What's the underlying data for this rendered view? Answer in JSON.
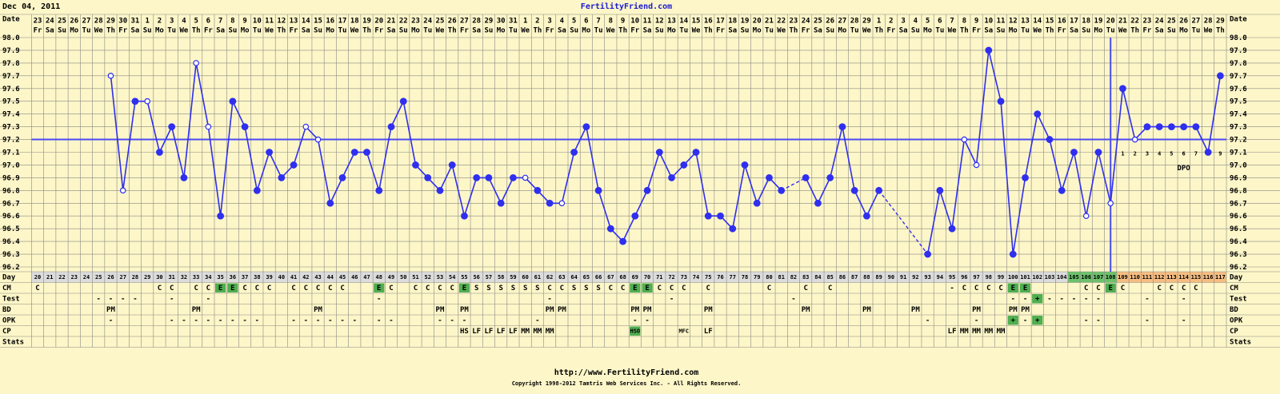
{
  "header": {
    "date": "Dec 04, 2011",
    "site": "FertilityFriend.com"
  },
  "footer": {
    "url": "http://www.FertilityFriend.com",
    "copyright": "Copyright 1998-2012 Tamtris Web Services Inc. - All Rights Reserved."
  },
  "chart_data": {
    "type": "line",
    "date_label": "Date",
    "day_label": "Day",
    "dpo_label": "DPO",
    "days": [
      20,
      21,
      22,
      23,
      24,
      25,
      26,
      27,
      28,
      29,
      30,
      31,
      32,
      33,
      34,
      35,
      36,
      37,
      38,
      39,
      40,
      41,
      42,
      43,
      44,
      45,
      46,
      47,
      48,
      49,
      50,
      51,
      52,
      53,
      54,
      55,
      56,
      57,
      58,
      59,
      60,
      61,
      62,
      63,
      64,
      65,
      66,
      67,
      68,
      69,
      70,
      71,
      72,
      73,
      74,
      75,
      76,
      77,
      78,
      79,
      80,
      81,
      82,
      83,
      84,
      85,
      86,
      87,
      88,
      89,
      90,
      91,
      92,
      93,
      94,
      95,
      96,
      97,
      98,
      99,
      100,
      101,
      102,
      103,
      104,
      105,
      106,
      107,
      108,
      109,
      110,
      111,
      112,
      113,
      114,
      115,
      116,
      117
    ],
    "dates": [
      "23",
      "24",
      "25",
      "26",
      "27",
      "28",
      "29",
      "30",
      "31",
      "1",
      "2",
      "3",
      "4",
      "5",
      "6",
      "7",
      "8",
      "9",
      "10",
      "11",
      "12",
      "13",
      "14",
      "15",
      "16",
      "17",
      "18",
      "19",
      "20",
      "21",
      "22",
      "23",
      "24",
      "25",
      "26",
      "27",
      "28",
      "29",
      "30",
      "31",
      "1",
      "2",
      "3",
      "4",
      "5",
      "6",
      "7",
      "8",
      "9",
      "10",
      "11",
      "12",
      "13",
      "14",
      "15",
      "16",
      "17",
      "18",
      "19",
      "20",
      "21",
      "22",
      "23",
      "24",
      "25",
      "26",
      "27",
      "28",
      "29",
      "1",
      "2",
      "3",
      "4",
      "5",
      "6",
      "7",
      "8",
      "9",
      "10",
      "11",
      "12",
      "13",
      "14",
      "15",
      "16",
      "17",
      "18",
      "19",
      "20",
      "21",
      "22",
      "23",
      "24",
      "25",
      "26",
      "27",
      "28",
      "29"
    ],
    "weekdays": [
      "Fr",
      "Sa",
      "Su",
      "Mo",
      "Tu",
      "We",
      "Th",
      "Fr",
      "Sa",
      "Su",
      "Mo",
      "Tu",
      "We",
      "Th",
      "Fr",
      "Sa",
      "Su",
      "Mo",
      "Tu",
      "We",
      "Th",
      "Fr",
      "Sa",
      "Su",
      "Mo",
      "Tu",
      "We",
      "Th",
      "Fr",
      "Sa",
      "Su",
      "Mo",
      "Tu",
      "We",
      "Th",
      "Fr",
      "Sa",
      "Su",
      "Mo",
      "Tu",
      "We",
      "Th",
      "Fr",
      "Sa",
      "Su",
      "Mo",
      "Tu",
      "We",
      "Th",
      "Fr",
      "Sa",
      "Su",
      "Mo",
      "Tu",
      "We",
      "Th",
      "Fr",
      "Sa",
      "Su",
      "Mo",
      "Tu",
      "We",
      "Th",
      "Fr",
      "Sa",
      "Su",
      "Mo",
      "Tu",
      "We",
      "Th",
      "Fr",
      "Sa",
      "Su",
      "Mo",
      "Tu",
      "We",
      "Th",
      "Fr",
      "Sa",
      "Su",
      "Mo",
      "Tu",
      "We",
      "Th",
      "Fr",
      "Sa",
      "Su",
      "Mo",
      "Tu",
      "We",
      "Th",
      "Fr",
      "Sa",
      "Su",
      "Mo",
      "Tu",
      "We",
      "Th"
    ],
    "values": [
      null,
      null,
      null,
      null,
      null,
      null,
      97.7,
      96.8,
      97.5,
      97.5,
      97.1,
      97.3,
      96.9,
      97.8,
      97.3,
      96.6,
      97.5,
      97.3,
      96.8,
      97.1,
      96.9,
      97.0,
      97.3,
      97.2,
      96.7,
      96.9,
      97.1,
      97.1,
      96.8,
      97.3,
      97.5,
      97.0,
      96.9,
      96.8,
      97.0,
      96.6,
      96.9,
      96.9,
      96.7,
      96.9,
      96.9,
      96.8,
      96.7,
      96.7,
      97.1,
      97.3,
      96.8,
      96.5,
      96.4,
      96.6,
      96.8,
      97.1,
      96.9,
      97.0,
      97.1,
      96.6,
      96.6,
      96.5,
      97.0,
      96.7,
      96.9,
      96.8,
      null,
      96.9,
      96.7,
      96.9,
      97.3,
      96.8,
      96.6,
      96.8,
      null,
      null,
      null,
      96.3,
      96.8,
      96.5,
      97.2,
      97.0,
      97.9,
      97.5,
      96.3,
      96.9,
      97.4,
      97.2,
      96.8,
      97.1,
      96.6,
      97.1,
      96.7,
      97.6,
      97.2,
      97.3,
      97.3,
      97.3,
      97.3,
      97.3,
      97.1,
      97.7
    ],
    "open_markers": [
      false,
      false,
      false,
      false,
      false,
      false,
      true,
      true,
      false,
      true,
      false,
      false,
      false,
      true,
      true,
      false,
      false,
      false,
      false,
      false,
      false,
      false,
      true,
      true,
      false,
      false,
      false,
      false,
      false,
      false,
      false,
      false,
      false,
      false,
      false,
      false,
      false,
      false,
      false,
      false,
      true,
      false,
      false,
      true,
      false,
      false,
      false,
      false,
      false,
      false,
      false,
      false,
      false,
      false,
      false,
      false,
      false,
      false,
      false,
      false,
      false,
      false,
      false,
      false,
      false,
      false,
      false,
      false,
      false,
      false,
      false,
      false,
      false,
      false,
      false,
      false,
      true,
      true,
      false,
      false,
      false,
      false,
      false,
      false,
      false,
      false,
      true,
      false,
      true,
      false,
      true,
      false,
      false,
      false,
      false,
      false,
      false,
      false
    ],
    "color": "#2f2ff0",
    "ylim": [
      96.2,
      98.0
    ],
    "yticks": [
      {
        "value": 98,
        "label": "98.0"
      },
      97.9,
      97.8,
      97.7,
      97.6,
      97.5,
      97.4,
      97.3,
      97.2,
      97.1,
      {
        "value": 97,
        "label": "97.0"
      },
      96.9,
      96.8,
      96.7,
      96.6,
      96.5,
      96.4,
      96.3,
      96.2
    ],
    "coverline": 97.2,
    "ovulation_day": 108,
    "dpo_labels": [
      1,
      2,
      3,
      4,
      5,
      6,
      7,
      8,
      9
    ],
    "rows": [
      {
        "label": "CM",
        "cells": [
          "C",
          null,
          null,
          null,
          null,
          null,
          null,
          null,
          null,
          null,
          "C",
          "C",
          null,
          "C",
          "C",
          "E",
          "E",
          "C",
          "C",
          "C",
          null,
          "C",
          "C",
          "C",
          "C",
          "C",
          null,
          null,
          "E",
          "C",
          null,
          "C",
          "C",
          "C",
          "C",
          "E",
          "S",
          "S",
          "S",
          "S",
          "S",
          "S",
          "C",
          "C",
          "S",
          "S",
          "S",
          "C",
          "C",
          "E",
          "E",
          "C",
          "C",
          "C",
          null,
          "C",
          null,
          null,
          null,
          null,
          "C",
          null,
          null,
          "C",
          null,
          "C",
          null,
          null,
          null,
          null,
          null,
          null,
          null,
          null,
          null,
          "-",
          "C",
          "C",
          "C",
          "C",
          "E",
          "E",
          null,
          null,
          null,
          null,
          "C",
          "C",
          "E",
          "C",
          null,
          null,
          "C",
          "C",
          "C",
          "C",
          null,
          null
        ]
      },
      {
        "label": "Test",
        "cells": [
          null,
          null,
          null,
          null,
          null,
          "-",
          "-",
          "-",
          "-",
          null,
          null,
          "-",
          null,
          null,
          "-",
          null,
          null,
          null,
          null,
          null,
          null,
          null,
          null,
          null,
          null,
          null,
          null,
          null,
          "-",
          null,
          null,
          null,
          null,
          null,
          null,
          null,
          null,
          null,
          null,
          null,
          null,
          null,
          "-",
          null,
          null,
          null,
          null,
          null,
          null,
          null,
          null,
          null,
          "-",
          null,
          null,
          null,
          null,
          null,
          null,
          null,
          null,
          null,
          "-",
          null,
          null,
          null,
          null,
          null,
          null,
          null,
          null,
          null,
          null,
          null,
          null,
          null,
          null,
          null,
          null,
          null,
          "-",
          "-",
          "+",
          "-",
          "-",
          "-",
          "-",
          "-",
          null,
          null,
          null,
          "-",
          null,
          null,
          "-",
          null,
          null,
          null
        ]
      },
      {
        "label": "BD",
        "cells": [
          null,
          null,
          null,
          null,
          null,
          null,
          "PM",
          null,
          null,
          null,
          null,
          null,
          null,
          "PM",
          null,
          null,
          null,
          null,
          null,
          null,
          null,
          null,
          null,
          "PM",
          null,
          null,
          null,
          null,
          null,
          null,
          null,
          null,
          null,
          "PM",
          null,
          "PM",
          null,
          null,
          null,
          null,
          null,
          null,
          "PM",
          "PM",
          null,
          null,
          null,
          null,
          null,
          "PM",
          "PM",
          null,
          null,
          null,
          null,
          "PM",
          null,
          null,
          null,
          null,
          null,
          null,
          null,
          "PM",
          null,
          null,
          null,
          null,
          "PM",
          null,
          null,
          null,
          "PM",
          null,
          null,
          null,
          null,
          "PM",
          null,
          null,
          "PM",
          "PM",
          null,
          null,
          null,
          null,
          null,
          null,
          null,
          null,
          null,
          null,
          null,
          null,
          null,
          null,
          null,
          null
        ]
      },
      {
        "label": "OPK",
        "cells": [
          null,
          null,
          null,
          null,
          null,
          null,
          "-",
          null,
          null,
          null,
          null,
          "-",
          "-",
          "-",
          "-",
          "-",
          "-",
          "-",
          "-",
          null,
          null,
          "-",
          "-",
          "-",
          "-",
          "-",
          "-",
          null,
          "-",
          "-",
          null,
          null,
          null,
          "-",
          "-",
          "-",
          null,
          null,
          null,
          null,
          null,
          "-",
          null,
          null,
          null,
          null,
          null,
          null,
          null,
          "-",
          "-",
          null,
          null,
          null,
          null,
          null,
          null,
          null,
          null,
          null,
          null,
          null,
          null,
          null,
          null,
          null,
          null,
          null,
          null,
          null,
          null,
          null,
          null,
          "-",
          null,
          null,
          null,
          "-",
          null,
          null,
          "+",
          "-",
          "+",
          null,
          null,
          null,
          "-",
          "-",
          null,
          null,
          null,
          "-",
          null,
          null,
          "-",
          null,
          null,
          null
        ]
      },
      {
        "label": "CP",
        "cells": [
          null,
          null,
          null,
          null,
          null,
          null,
          null,
          null,
          null,
          null,
          null,
          null,
          null,
          null,
          null,
          null,
          null,
          null,
          null,
          null,
          null,
          null,
          null,
          null,
          null,
          null,
          null,
          null,
          null,
          null,
          null,
          null,
          null,
          null,
          null,
          "HS",
          "LF",
          "LF",
          "LF",
          "LF",
          "MM",
          "MM",
          "MM",
          null,
          null,
          null,
          null,
          null,
          null,
          "HSO",
          null,
          null,
          null,
          "MFC",
          null,
          "LF",
          null,
          null,
          null,
          null,
          null,
          null,
          null,
          null,
          null,
          null,
          null,
          null,
          null,
          null,
          null,
          null,
          null,
          null,
          null,
          "LF",
          "MM",
          "MM",
          "MM",
          "MM",
          null,
          null,
          null,
          null,
          null,
          null,
          null,
          null,
          null,
          null,
          null,
          null,
          null,
          null,
          null,
          null,
          null,
          null
        ]
      },
      {
        "label": "Stats"
      }
    ]
  }
}
